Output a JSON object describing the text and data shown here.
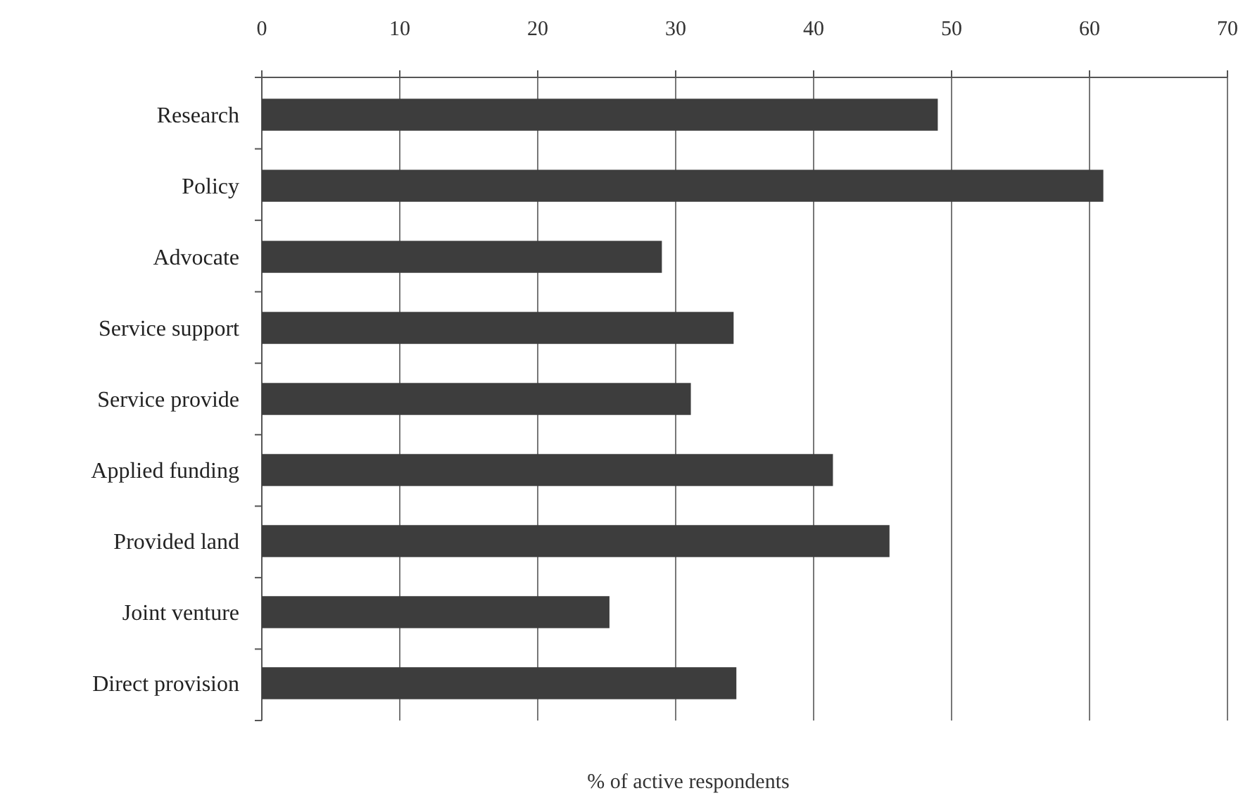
{
  "chart_data": {
    "type": "bar",
    "orientation": "horizontal",
    "xlabel": "% of active respondents",
    "categories": [
      "Research",
      "Policy",
      "Advocate",
      "Service support",
      "Service provide",
      "Applied funding",
      "Provided land",
      "Joint venture",
      "Direct provision"
    ],
    "values": [
      49,
      61,
      29,
      34.2,
      31.1,
      41.4,
      45.5,
      25.2,
      34.4
    ],
    "color": "#3d3d3d",
    "xlim": [
      0,
      70
    ],
    "xticks": [
      0,
      10,
      20,
      30,
      40,
      50,
      60,
      70
    ],
    "grid": "x"
  }
}
